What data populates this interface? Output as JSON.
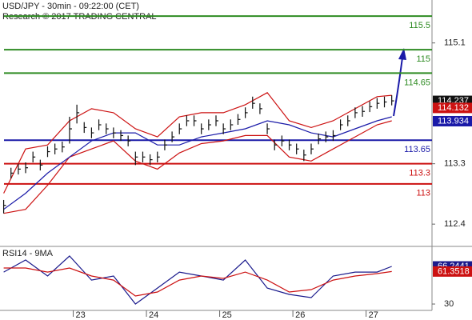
{
  "chart_data": [
    {
      "type": "ohlc",
      "title": "USD/JPY - 30min - 09:22:00 (CET)",
      "subtitle": "Research © 2017 TRADING CENTRAL",
      "xlim": [
        22.0,
        27.9
      ],
      "ylim": [
        112.08,
        115.74
      ],
      "yticks": [
        115.1,
        113.3,
        112.4
      ],
      "color": "#111111",
      "x": [
        22.05,
        22.15,
        22.25,
        22.35,
        22.45,
        22.55,
        22.65,
        22.75,
        22.85,
        22.95,
        23.05,
        23.15,
        23.25,
        23.35,
        23.45,
        23.55,
        23.65,
        23.75,
        23.85,
        23.95,
        24.05,
        24.15,
        24.25,
        24.35,
        24.45,
        24.55,
        24.65,
        24.75,
        24.85,
        24.95,
        25.05,
        25.15,
        25.25,
        25.35,
        25.45,
        25.55,
        25.65,
        25.75,
        25.85,
        25.95,
        26.05,
        26.15,
        26.25,
        26.35,
        26.45,
        26.55,
        26.65,
        26.75,
        26.85,
        26.95,
        27.05,
        27.15,
        27.25,
        27.35
      ],
      "high": [
        112.76,
        113.24,
        113.3,
        113.32,
        113.48,
        113.36,
        113.56,
        113.6,
        113.63,
        114.0,
        114.18,
        113.92,
        113.84,
        113.96,
        113.9,
        113.84,
        113.8,
        113.72,
        113.48,
        113.48,
        113.44,
        113.48,
        113.66,
        113.78,
        113.9,
        114.02,
        114.02,
        113.9,
        113.96,
        114.02,
        113.9,
        113.96,
        114.04,
        114.14,
        114.3,
        114.2,
        113.9,
        113.66,
        113.72,
        113.66,
        113.6,
        113.51,
        113.6,
        113.75,
        113.78,
        113.8,
        113.96,
        114.02,
        114.14,
        114.16,
        114.23,
        114.28,
        114.3,
        114.32
      ],
      "low": [
        112.56,
        113.08,
        113.14,
        113.16,
        113.32,
        113.2,
        113.4,
        113.44,
        113.47,
        113.6,
        113.9,
        113.76,
        113.68,
        113.8,
        113.74,
        113.68,
        113.64,
        113.56,
        113.28,
        113.32,
        113.28,
        113.32,
        113.5,
        113.62,
        113.74,
        113.86,
        113.86,
        113.74,
        113.8,
        113.86,
        113.74,
        113.8,
        113.88,
        113.98,
        114.12,
        114.04,
        113.74,
        113.5,
        113.56,
        113.5,
        113.44,
        113.34,
        113.44,
        113.59,
        113.62,
        113.64,
        113.8,
        113.86,
        113.98,
        114.0,
        114.07,
        114.12,
        114.14,
        114.17
      ],
      "close": [
        112.68,
        113.16,
        113.22,
        113.24,
        113.4,
        113.28,
        113.48,
        113.52,
        113.55,
        113.82,
        114.06,
        113.84,
        113.76,
        113.88,
        113.82,
        113.76,
        113.72,
        113.64,
        113.4,
        113.4,
        113.36,
        113.4,
        113.58,
        113.7,
        113.82,
        113.94,
        113.94,
        113.82,
        113.88,
        113.94,
        113.82,
        113.88,
        113.96,
        114.06,
        114.2,
        114.12,
        113.82,
        113.58,
        113.64,
        113.58,
        113.52,
        113.43,
        113.52,
        113.67,
        113.7,
        113.72,
        113.88,
        113.94,
        114.06,
        114.08,
        114.15,
        114.2,
        114.22,
        114.237
      ],
      "overlays": [
        {
          "color": "#cc1111",
          "x": [
            22.05,
            22.35,
            22.65,
            22.95,
            23.25,
            23.55,
            23.85,
            24.15,
            24.45,
            24.75,
            25.05,
            25.35,
            25.65,
            25.95,
            26.25,
            26.55,
            26.85,
            27.15,
            27.35
          ],
          "values": [
            112.86,
            113.52,
            113.58,
            113.94,
            114.12,
            114.06,
            113.82,
            113.7,
            114.0,
            114.06,
            114.06,
            114.18,
            114.36,
            113.94,
            113.84,
            113.94,
            114.12,
            114.3,
            114.32
          ]
        },
        {
          "color": "#cc1111",
          "x": [
            22.05,
            22.35,
            22.65,
            22.95,
            23.25,
            23.55,
            23.85,
            24.15,
            24.45,
            24.75,
            25.05,
            25.35,
            25.65,
            25.95,
            26.25,
            26.55,
            26.85,
            27.15,
            27.35
          ],
          "values": [
            112.56,
            112.62,
            112.98,
            113.4,
            113.52,
            113.64,
            113.34,
            113.22,
            113.46,
            113.6,
            113.64,
            113.72,
            113.72,
            113.4,
            113.34,
            113.52,
            113.7,
            113.88,
            113.94
          ]
        },
        {
          "color": "#1a1aa8",
          "x": [
            22.05,
            22.35,
            22.65,
            22.95,
            23.25,
            23.55,
            23.85,
            24.15,
            24.45,
            24.75,
            25.05,
            25.35,
            25.65,
            25.95,
            26.25,
            26.55,
            26.85,
            27.15,
            27.35
          ],
          "values": [
            112.62,
            112.86,
            113.16,
            113.4,
            113.64,
            113.76,
            113.76,
            113.58,
            113.58,
            113.7,
            113.76,
            113.82,
            113.94,
            113.88,
            113.76,
            113.7,
            113.82,
            113.94,
            114.0
          ]
        }
      ],
      "levels": [
        {
          "value": 115.5,
          "color": "#2e8b22"
        },
        {
          "value": 115,
          "color": "#2e8b22"
        },
        {
          "value": 114.65,
          "color": "#2e8b22"
        },
        {
          "value": 113.65,
          "color": "#1a1aa8"
        },
        {
          "value": 113.3,
          "color": "#cc1111"
        },
        {
          "value": 113,
          "color": "#cc1111"
        }
      ],
      "price_boxes": [
        {
          "value": 114.237,
          "color": "#111111"
        },
        {
          "value": 114.132,
          "color": "#cc1111"
        },
        {
          "value": 113.934,
          "color": "#1a1aa8"
        }
      ]
    },
    {
      "type": "line",
      "title": "RSI14 - 9MA",
      "xlim": [
        22.0,
        27.9
      ],
      "xticks": [
        23,
        24,
        25,
        26,
        27
      ],
      "ylim": [
        25.4,
        84
      ],
      "yticks": [
        30
      ],
      "x": [
        22.05,
        22.35,
        22.65,
        22.95,
        23.25,
        23.55,
        23.85,
        24.15,
        24.45,
        24.75,
        25.05,
        25.35,
        25.65,
        25.95,
        26.25,
        26.55,
        26.85,
        27.15,
        27.35
      ],
      "series": [
        {
          "color": "#1a1a8c",
          "values": [
            60.8,
            72.4,
            57.0,
            76.3,
            53.1,
            57.0,
            30.0,
            45.4,
            60.8,
            57.0,
            53.1,
            72.4,
            45.4,
            39.3,
            36.2,
            57.0,
            60.8,
            60.8,
            66.24
          ]
        },
        {
          "color": "#cc1111",
          "values": [
            64.7,
            64.7,
            60.8,
            64.7,
            57.0,
            53.1,
            37.7,
            41.6,
            53.1,
            57.0,
            54.7,
            60.8,
            53.1,
            41.6,
            43.9,
            53.1,
            57.0,
            59.3,
            61.35
          ]
        }
      ],
      "price_boxes": [
        {
          "value": 66.2441,
          "color": "#1a1a8c"
        },
        {
          "value": 61.3518,
          "color": "#cc1111"
        }
      ]
    }
  ]
}
